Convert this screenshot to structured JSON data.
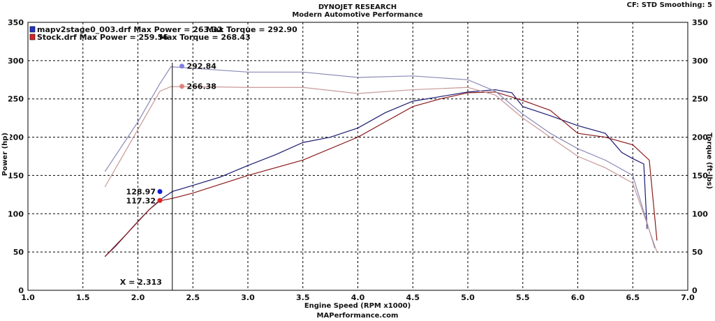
{
  "header": {
    "title": "DYNOJET RESEARCH",
    "subtitle": "Modern Automotive Performance",
    "settings": "CF: STD  Smoothing: 5",
    "footer": "MAPerformance.com"
  },
  "chart_data": {
    "type": "line",
    "xlabel": "Engine Speed (RPM x1000)",
    "ylabel": "Power (hp)",
    "y2label": "Torque (ft-lbs)",
    "xlim": [
      1.0,
      7.0
    ],
    "ylim": [
      0,
      350
    ],
    "y2lim": [
      0,
      350
    ],
    "xticks": [
      "1.0",
      "1.5",
      "2.0",
      "2.5",
      "3.0",
      "3.5",
      "4.0",
      "4.5",
      "5.0",
      "5.5",
      "6.0",
      "6.5",
      "7.0"
    ],
    "yticks": [
      "0",
      "50",
      "100",
      "150",
      "200",
      "250",
      "300",
      "350"
    ],
    "grid": true,
    "legend": {
      "placement": "top-left",
      "items": [
        {
          "text": "mapv2stage0_003.drf Max Power = 263.32",
          "torque": "Max Torque = 292.90",
          "color": "#2233cc"
        },
        {
          "text": "Stock.drf Max Power = 259.56",
          "torque": "Max Torque = 268.43",
          "color": "#dd2222"
        }
      ]
    },
    "cursor": {
      "x": 2.313,
      "label": "X = 2.313"
    },
    "markers": [
      {
        "label": "292.84",
        "x": 2.4,
        "y": 292.84,
        "color": "#8080e0"
      },
      {
        "label": "266.38",
        "x": 2.4,
        "y": 266.38,
        "color": "#e08080"
      },
      {
        "label": "128.97",
        "x": 2.2,
        "y": 128.97,
        "color": "#1020d0"
      },
      {
        "label": "117.32",
        "x": 2.2,
        "y": 117.32,
        "color": "#e02020"
      }
    ],
    "series": [
      {
        "name": "mapv2stage0_003.drf Power",
        "color": "#1a1a70",
        "x": [
          1.7,
          1.8,
          1.9,
          2.0,
          2.1,
          2.2,
          2.313,
          2.5,
          2.75,
          3.0,
          3.25,
          3.5,
          3.75,
          4.0,
          4.25,
          4.5,
          4.75,
          5.0,
          5.25,
          5.4,
          5.5,
          5.75,
          6.0,
          6.25,
          6.4,
          6.5,
          6.6,
          6.63
        ],
        "y": [
          44,
          58,
          74,
          90,
          105,
          118,
          129,
          137,
          148,
          163,
          177,
          193,
          200,
          212,
          232,
          247,
          253,
          259,
          262,
          258,
          240,
          228,
          215,
          205,
          180,
          172,
          165,
          80
        ]
      },
      {
        "name": "Stock.drf Power",
        "color": "#8b1a1a",
        "x": [
          1.7,
          1.9,
          2.1,
          2.2,
          2.313,
          2.5,
          3.0,
          3.5,
          4.0,
          4.25,
          4.5,
          4.75,
          5.0,
          5.25,
          5.5,
          5.75,
          6.0,
          6.25,
          6.5,
          6.65,
          6.72
        ],
        "y": [
          44,
          74,
          105,
          117,
          120,
          127,
          150,
          170,
          200,
          220,
          240,
          250,
          258,
          259,
          248,
          235,
          205,
          200,
          190,
          170,
          65
        ]
      },
      {
        "name": "mapv2stage0_003.drf Torque",
        "color": "#8a8ab8",
        "x": [
          1.7,
          2.0,
          2.2,
          2.3,
          2.5,
          3.0,
          3.5,
          4.0,
          4.5,
          5.0,
          5.25,
          5.5,
          5.75,
          6.0,
          6.25,
          6.5,
          6.7
        ],
        "y": [
          155,
          220,
          270,
          292,
          290,
          285,
          285,
          278,
          280,
          275,
          260,
          230,
          205,
          185,
          170,
          150,
          55
        ]
      },
      {
        "name": "Stock.drf Torque",
        "color": "#c89898",
        "x": [
          1.7,
          2.0,
          2.2,
          2.3,
          2.5,
          3.0,
          3.5,
          4.0,
          4.5,
          5.0,
          5.25,
          5.5,
          5.75,
          6.0,
          6.25,
          6.5,
          6.72
        ],
        "y": [
          135,
          210,
          260,
          266,
          266,
          265,
          265,
          257,
          262,
          265,
          255,
          225,
          200,
          175,
          160,
          140,
          50
        ]
      }
    ]
  }
}
